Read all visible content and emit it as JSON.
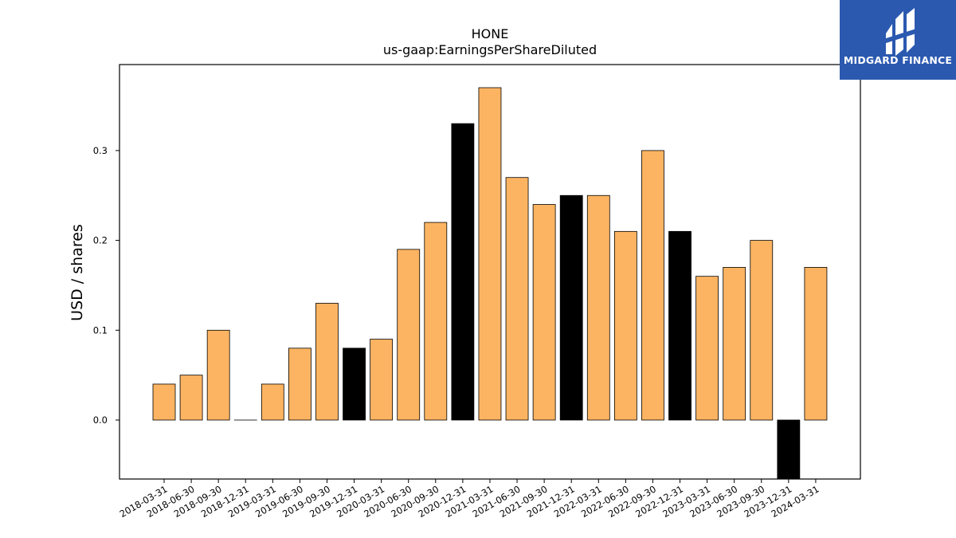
{
  "chart_data": {
    "type": "bar",
    "title": "HONE",
    "subtitle": "us-gaap:EarningsPerShareDiluted",
    "xlabel": "",
    "ylabel": "USD / shares",
    "ylim": [
      -0.066,
      0.395
    ],
    "yticks": [
      0.0,
      0.1,
      0.2,
      0.3
    ],
    "ytick_labels": [
      "0.0",
      "0.1",
      "0.2",
      "0.3"
    ],
    "grid": false,
    "categories": [
      "2018-03-31",
      "2018-06-30",
      "2018-09-30",
      "2018-12-31",
      "2019-03-31",
      "2019-06-30",
      "2019-09-30",
      "2019-12-31",
      "2020-03-31",
      "2020-06-30",
      "2020-09-30",
      "2020-12-31",
      "2021-03-31",
      "2021-06-30",
      "2021-09-30",
      "2021-12-31",
      "2022-03-31",
      "2022-06-30",
      "2022-09-30",
      "2022-12-31",
      "2023-03-31",
      "2023-06-30",
      "2023-09-30",
      "2023-12-31",
      "2024-03-31"
    ],
    "values": [
      0.04,
      0.05,
      0.1,
      0.0,
      0.04,
      0.08,
      0.13,
      0.08,
      0.09,
      0.19,
      0.22,
      0.33,
      0.37,
      0.27,
      0.24,
      0.25,
      0.25,
      0.21,
      0.3,
      0.21,
      0.16,
      0.17,
      0.2,
      -0.07,
      0.17
    ],
    "bar_types": [
      "q",
      "q",
      "q",
      "q",
      "q",
      "q",
      "q",
      "fy",
      "q",
      "q",
      "q",
      "fy",
      "q",
      "q",
      "q",
      "fy",
      "q",
      "q",
      "q",
      "fy",
      "q",
      "q",
      "q",
      "fy",
      "q"
    ],
    "colors": {
      "q": "#fdb462",
      "fy": "#000000",
      "edge": "#000000"
    }
  },
  "logo": {
    "text": "MIDGARD FINANCE",
    "background": "#2b59b0"
  }
}
